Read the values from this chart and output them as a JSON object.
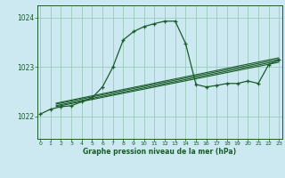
{
  "title": "Graphe pression niveau de la mer (hPa)",
  "background_color": "#cce8f0",
  "grid_color": "#99ccbb",
  "line_color": "#1a5c2a",
  "x_ticks": [
    0,
    1,
    2,
    3,
    4,
    5,
    6,
    7,
    8,
    9,
    10,
    11,
    12,
    13,
    14,
    15,
    16,
    17,
    18,
    19,
    20,
    21,
    22,
    23
  ],
  "y_ticks": [
    1022,
    1023,
    1024
  ],
  "ylim": [
    1021.55,
    1024.25
  ],
  "xlim": [
    -0.3,
    23.3
  ],
  "main_line": {
    "x": [
      0,
      1,
      2,
      3,
      4,
      5,
      6,
      7,
      8,
      9,
      10,
      11,
      12,
      13,
      14,
      15,
      16,
      17,
      18,
      19,
      20,
      21,
      22,
      23
    ],
    "y": [
      1022.05,
      1022.15,
      1022.2,
      1022.22,
      1022.3,
      1022.38,
      1022.6,
      1023.0,
      1023.55,
      1023.72,
      1023.82,
      1023.88,
      1023.93,
      1023.93,
      1023.48,
      1022.65,
      1022.6,
      1022.63,
      1022.67,
      1022.67,
      1022.72,
      1022.67,
      1023.05,
      1023.15
    ]
  },
  "trend_lines": [
    {
      "x": [
        1.5,
        23
      ],
      "y": [
        1022.2,
        1023.1
      ]
    },
    {
      "x": [
        1.5,
        23
      ],
      "y": [
        1022.22,
        1023.13
      ]
    },
    {
      "x": [
        1.5,
        23
      ],
      "y": [
        1022.25,
        1023.16
      ]
    },
    {
      "x": [
        1.5,
        23
      ],
      "y": [
        1022.27,
        1023.19
      ]
    }
  ],
  "figsize": [
    3.2,
    2.0
  ],
  "dpi": 100
}
